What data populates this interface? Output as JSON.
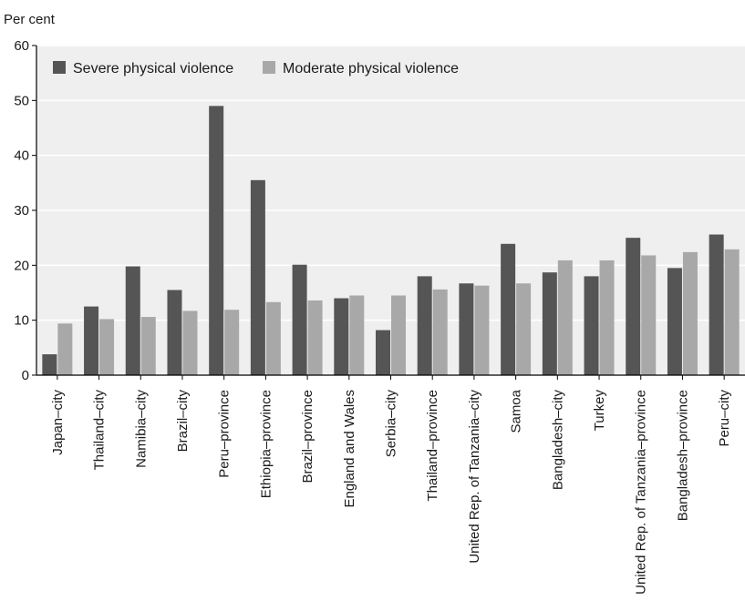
{
  "chart_data": {
    "type": "bar",
    "ylabel": "Per cent",
    "ylim": [
      0,
      60
    ],
    "yticks": [
      0,
      10,
      20,
      30,
      40,
      50,
      60
    ],
    "grid": true,
    "legend_position": "top-left",
    "categories": [
      "Japan–city",
      "Thailand–city",
      "Namibia–city",
      "Brazil–city",
      "Peru–province",
      "Ethiopia–province",
      "Brazil–province",
      "England and Wales",
      "Serbia–city",
      "Thailand–province",
      "United Rep. of Tanzania–city",
      "Samoa",
      "Bangladesh–city",
      "Turkey",
      "United Rep. of Tanzania–province",
      "Bangladesh–province",
      "Peru–city"
    ],
    "series": [
      {
        "name": "Severe physical violence",
        "color": "#555555",
        "values": [
          3.8,
          12.5,
          19.8,
          15.5,
          49.0,
          35.5,
          20.1,
          14.0,
          8.2,
          18.0,
          16.7,
          23.9,
          18.7,
          18.0,
          25.0,
          19.5,
          25.6
        ]
      },
      {
        "name": "Moderate physical violence",
        "color": "#a8a8a8",
        "values": [
          9.4,
          10.2,
          10.6,
          11.7,
          11.9,
          13.3,
          13.6,
          14.5,
          14.5,
          15.6,
          16.3,
          16.7,
          20.9,
          20.9,
          21.8,
          22.4,
          22.9
        ]
      }
    ]
  }
}
